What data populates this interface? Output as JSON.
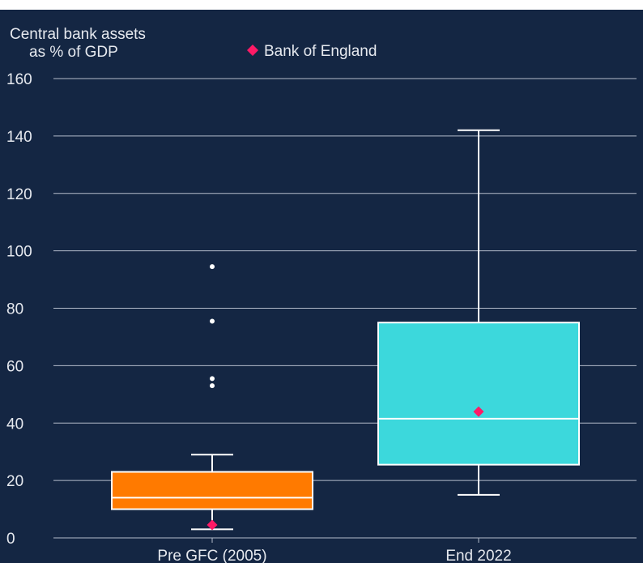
{
  "chart_data": {
    "type": "box",
    "ylabel_lines": [
      "Central bank assets",
      "as % of GDP"
    ],
    "ylim": [
      0,
      160
    ],
    "yticks": [
      0,
      20,
      40,
      60,
      80,
      100,
      120,
      140,
      160
    ],
    "grid": true,
    "legend": {
      "label": "Bank of England",
      "marker": "diamond",
      "placement": "top"
    },
    "categories": [
      "Pre GFC (2005)",
      "End 2022"
    ],
    "boxes": [
      {
        "category": "Pre GFC (2005)",
        "whisker_low": 3,
        "q1": 10,
        "median": 14,
        "q3": 23,
        "whisker_high": 29,
        "outliers": [
          53,
          55.5,
          75.5,
          94.5
        ],
        "bank_of_england": 4.5,
        "color": "#ff7a00"
      },
      {
        "category": "End 2022",
        "whisker_low": 15,
        "q1": 25.5,
        "median": 41.5,
        "q3": 75,
        "whisker_high": 142,
        "outliers": [],
        "bank_of_england": 44,
        "color": "#3cd8dc"
      }
    ]
  },
  "colors": {
    "background": "#142643",
    "grid": "#b4bccb",
    "text": "#e6e9ef",
    "box_edge": "#ffffff",
    "marker": "#ff1a66",
    "outlier": "#ffffff"
  }
}
